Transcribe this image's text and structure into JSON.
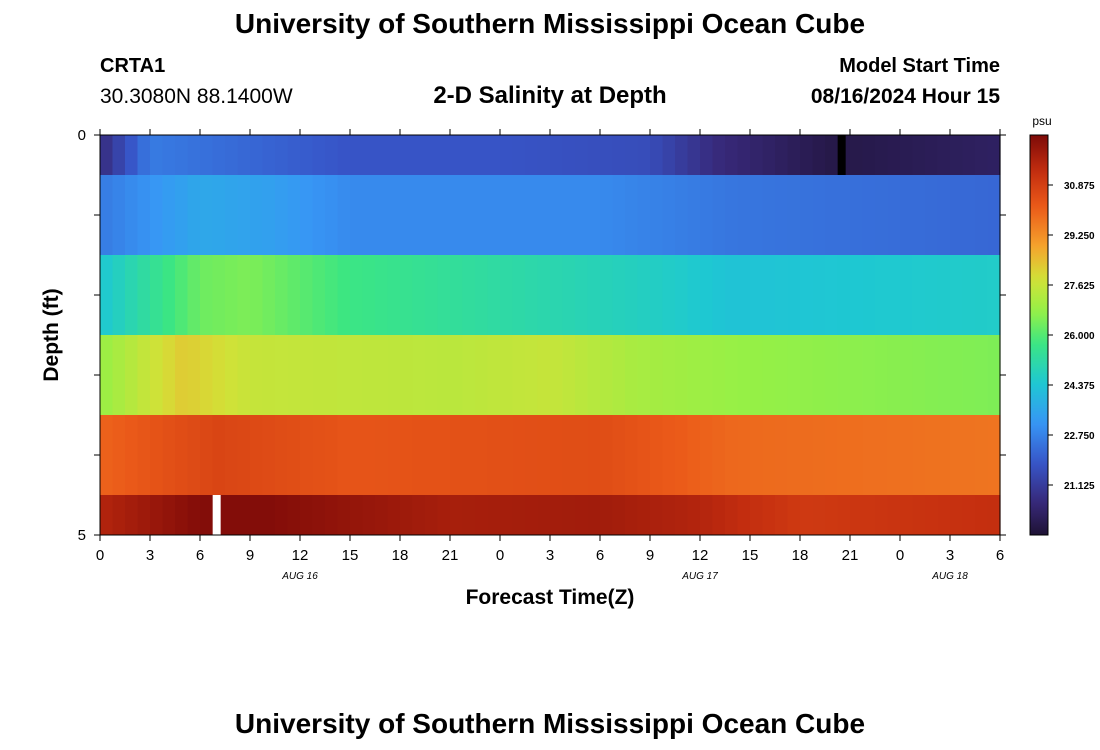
{
  "header": {
    "title": "University of Southern Mississippi Ocean Cube",
    "station_id": "CRTA1",
    "station_coords": "30.3080N  88.1400W",
    "plot_title": "2-D Salinity at Depth",
    "model_start_label": "Model Start Time",
    "model_start_value": "08/16/2024 Hour 15"
  },
  "footer": {
    "title": "University of Southern Mississippi Ocean Cube"
  },
  "chart_data": {
    "type": "heatmap",
    "title": "2-D Salinity at Depth",
    "xlabel": "Forecast Time(Z)",
    "ylabel": "Depth (ft)",
    "x_tick_labels": [
      "0",
      "3",
      "6",
      "9",
      "12",
      "15",
      "18",
      "21",
      "0",
      "3",
      "6",
      "9",
      "12",
      "15",
      "18",
      "21",
      "0",
      "3",
      "6"
    ],
    "date_labels": [
      {
        "tick_index": 4,
        "label": "AUG 16"
      },
      {
        "tick_index": 12,
        "label": "AUG 17"
      },
      {
        "tick_index": 17,
        "label": "AUG 18"
      }
    ],
    "y_tick_labels": [
      "0",
      "5"
    ],
    "y_range": [
      0,
      5
    ],
    "x_range_hours": [
      0,
      54
    ],
    "colorbar": {
      "unit": "psu",
      "min": 19.5,
      "max": 32.5,
      "tick_values": [
        30.875,
        29.25,
        27.625,
        26.0,
        24.375,
        22.75,
        21.125
      ],
      "tick_labels": [
        "30.875",
        "29.250",
        "27.625",
        "26.000",
        "24.375",
        "22.750",
        "21.125"
      ]
    },
    "depth_layers": [
      {
        "depth_range": [
          0.0,
          0.5
        ],
        "salinity_keyframes": [
          [
            0,
            20.6
          ],
          [
            3,
            22.6
          ],
          [
            6,
            22.4
          ],
          [
            9,
            22.2
          ],
          [
            15,
            21.8
          ],
          [
            24,
            21.8
          ],
          [
            33,
            21.6
          ],
          [
            37,
            20.6
          ],
          [
            44,
            19.8
          ],
          [
            54,
            20.2
          ]
        ]
      },
      {
        "depth_range": [
          0.5,
          1.5
        ],
        "salinity_keyframes": [
          [
            0,
            22.6
          ],
          [
            6,
            23.6
          ],
          [
            10,
            23.4
          ],
          [
            15,
            22.9
          ],
          [
            30,
            22.9
          ],
          [
            38,
            22.5
          ],
          [
            54,
            22.2
          ]
        ]
      },
      {
        "depth_range": [
          1.5,
          2.5
        ],
        "salinity_keyframes": [
          [
            0,
            24.4
          ],
          [
            6,
            26.3
          ],
          [
            9,
            26.5
          ],
          [
            15,
            25.7
          ],
          [
            24,
            25.2
          ],
          [
            33,
            24.7
          ],
          [
            38,
            24.3
          ],
          [
            54,
            24.6
          ]
        ]
      },
      {
        "depth_range": [
          2.5,
          3.5
        ],
        "salinity_keyframes": [
          [
            0,
            26.8
          ],
          [
            5,
            28.2
          ],
          [
            9,
            27.6
          ],
          [
            15,
            27.5
          ],
          [
            21,
            27.4
          ],
          [
            27,
            27.6
          ],
          [
            32,
            27.1
          ],
          [
            38,
            26.8
          ],
          [
            54,
            26.5
          ]
        ]
      },
      {
        "depth_range": [
          3.5,
          4.5
        ],
        "salinity_keyframes": [
          [
            0,
            30.0
          ],
          [
            7,
            30.7
          ],
          [
            15,
            30.3
          ],
          [
            30,
            30.5
          ],
          [
            38,
            29.9
          ],
          [
            54,
            29.7
          ]
        ]
      },
      {
        "depth_range": [
          4.5,
          5.0
        ],
        "salinity_keyframes": [
          [
            0,
            31.6
          ],
          [
            6,
            32.4
          ],
          [
            10,
            32.4
          ],
          [
            21,
            31.8
          ],
          [
            30,
            31.9
          ],
          [
            36,
            31.6
          ],
          [
            42,
            31.0
          ],
          [
            54,
            31.3
          ]
        ]
      }
    ],
    "missing_data_markers": [
      {
        "hour": 7.0,
        "depth": 4.75,
        "color": "#ffffff"
      },
      {
        "hour": 44.5,
        "depth": 0.25,
        "color": "#000000"
      }
    ]
  }
}
